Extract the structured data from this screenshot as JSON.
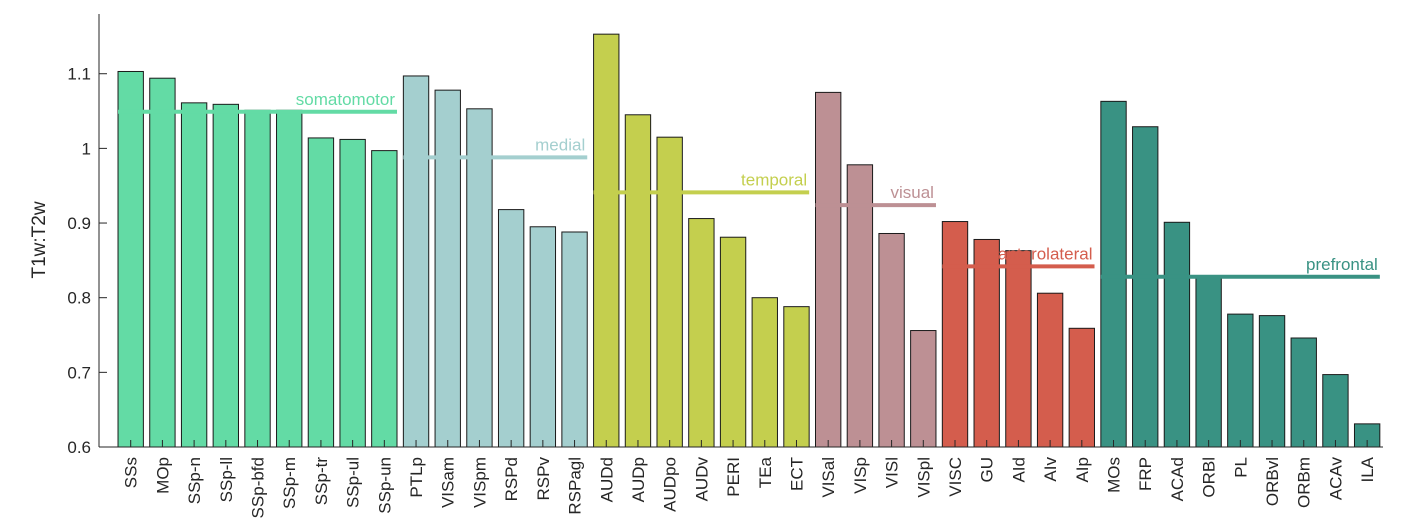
{
  "chart_data": {
    "type": "bar",
    "ylabel": "T1w:T2w",
    "xlabel": "",
    "title": "",
    "ylim": [
      0.6,
      1.18
    ],
    "yticks": [
      0.6,
      0.7,
      0.8,
      0.9,
      1,
      1.1
    ],
    "ytick_labels": [
      "0.6",
      "0.7",
      "0.8",
      "0.9",
      "1",
      "1.1"
    ],
    "grid": false,
    "categories": [
      "SSs",
      "MOp",
      "SSp-n",
      "SSp-ll",
      "SSp-bfd",
      "SSp-m",
      "SSp-tr",
      "SSp-ul",
      "SSp-un",
      "PTLp",
      "VISam",
      "VISpm",
      "RSPd",
      "RSPv",
      "RSPagl",
      "AUDd",
      "AUDp",
      "AUDpo",
      "AUDv",
      "PERI",
      "TEa",
      "ECT",
      "VISal",
      "VISp",
      "VISl",
      "VISpl",
      "VISC",
      "GU",
      "AId",
      "AIv",
      "AIp",
      "MOs",
      "FRP",
      "ACAd",
      "ORBl",
      "PL",
      "ORBvl",
      "ORBm",
      "ACAv",
      "ILA"
    ],
    "values": [
      1.103,
      1.094,
      1.061,
      1.059,
      1.051,
      1.051,
      1.014,
      1.012,
      0.997,
      1.097,
      1.078,
      1.053,
      0.918,
      0.895,
      0.888,
      1.153,
      1.045,
      1.015,
      0.906,
      0.881,
      0.8,
      0.788,
      1.075,
      0.978,
      0.886,
      0.756,
      0.902,
      0.878,
      0.863,
      0.806,
      0.759,
      1.063,
      1.029,
      0.901,
      0.828,
      0.778,
      0.776,
      0.746,
      0.697,
      0.631
    ],
    "groups": [
      {
        "name": "somatomotor",
        "start": 0,
        "end": 8,
        "mean": 1.049,
        "color": "#63dba5"
      },
      {
        "name": "medial",
        "start": 9,
        "end": 14,
        "mean": 0.988,
        "color": "#a4cfcf"
      },
      {
        "name": "temporal",
        "start": 15,
        "end": 21,
        "mean": 0.941,
        "color": "#c4cf4e"
      },
      {
        "name": "visual",
        "start": 22,
        "end": 25,
        "mean": 0.924,
        "color": "#bd9094"
      },
      {
        "name": "anterolateral",
        "start": 26,
        "end": 30,
        "mean": 0.842,
        "color": "#d45d4d"
      },
      {
        "name": "prefrontal",
        "start": 31,
        "end": 39,
        "mean": 0.828,
        "color": "#399283"
      }
    ]
  }
}
